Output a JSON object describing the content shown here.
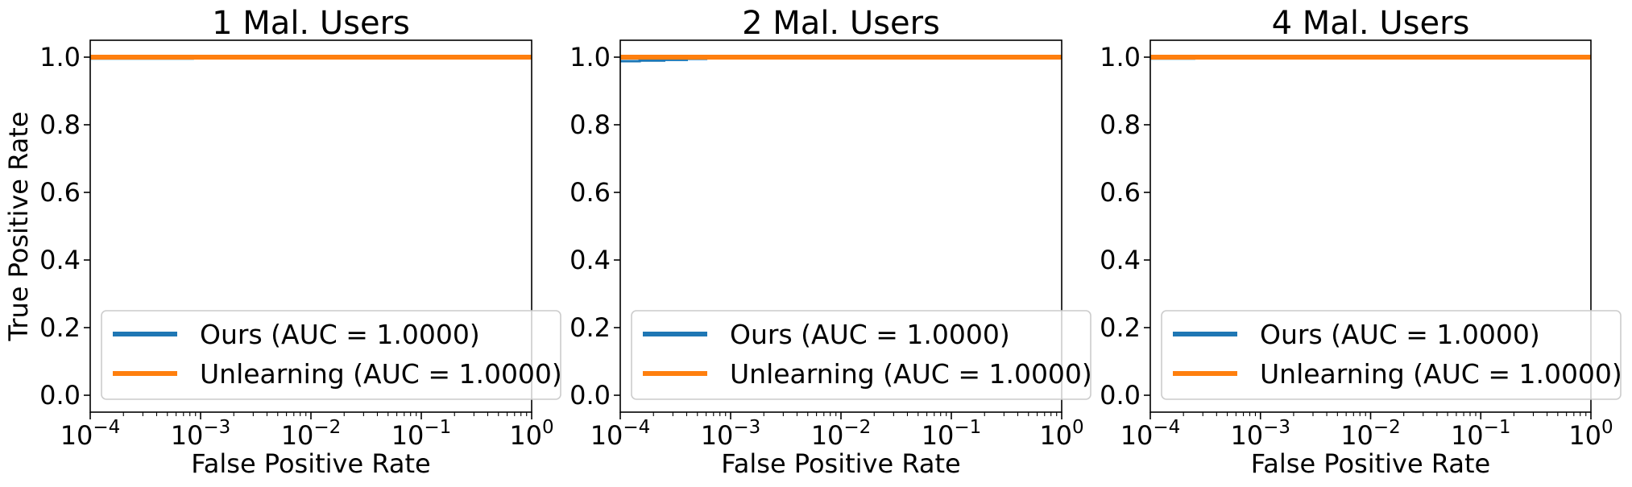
{
  "chart_data": [
    {
      "type": "line",
      "title": "1 Mal. Users",
      "xlabel": "False Positive Rate",
      "ylabel": "True Positive Rate",
      "xscale": "log",
      "xlim": [
        0.0001,
        1
      ],
      "ylim": [
        -0.05,
        1.05
      ],
      "x_ticks": [
        0.0001,
        0.001,
        0.01,
        0.1,
        1
      ],
      "x_tick_labels": [
        [
          "10",
          "−4"
        ],
        [
          "10",
          "−3"
        ],
        [
          "10",
          "−2"
        ],
        [
          "10",
          "−1"
        ],
        [
          "10",
          "0"
        ]
      ],
      "y_ticks": [
        0.0,
        0.2,
        0.4,
        0.6,
        0.8,
        1.0
      ],
      "y_tick_labels": [
        "0.0",
        "0.2",
        "0.4",
        "0.6",
        "0.8",
        "1.0"
      ],
      "legend_position": "lower-right",
      "series": [
        {
          "name": "Ours (AUC = 1.0000)",
          "color": "#1f77b4",
          "x": [
            0.0001,
            0.00085,
            0.00085,
            1
          ],
          "y": [
            0.996,
            0.996,
            1.0,
            1.0
          ]
        },
        {
          "name": "Unlearning (AUC = 1.0000)",
          "color": "#ff7f0e",
          "x": [
            0.0001,
            1
          ],
          "y": [
            1.0,
            1.0
          ]
        }
      ]
    },
    {
      "type": "line",
      "title": "2 Mal. Users",
      "xlabel": "False Positive Rate",
      "ylabel": "",
      "xscale": "log",
      "xlim": [
        0.0001,
        1
      ],
      "ylim": [
        -0.05,
        1.05
      ],
      "x_ticks": [
        0.0001,
        0.001,
        0.01,
        0.1,
        1
      ],
      "x_tick_labels": [
        [
          "10",
          "−4"
        ],
        [
          "10",
          "−3"
        ],
        [
          "10",
          "−2"
        ],
        [
          "10",
          "−1"
        ],
        [
          "10",
          "0"
        ]
      ],
      "y_ticks": [
        0.0,
        0.2,
        0.4,
        0.6,
        0.8,
        1.0
      ],
      "y_tick_labels": [
        "0.0",
        "0.2",
        "0.4",
        "0.6",
        "0.8",
        "1.0"
      ],
      "legend_position": "lower-right",
      "series": [
        {
          "name": "Ours (AUC = 1.0000)",
          "color": "#1f77b4",
          "x": [
            0.0001,
            0.00015,
            0.00015,
            0.00025,
            0.00025,
            0.0004,
            0.0004,
            0.0006,
            0.0006,
            1
          ],
          "y": [
            0.988,
            0.988,
            0.99,
            0.99,
            0.992,
            0.992,
            0.995,
            0.995,
            1.0,
            1.0
          ]
        },
        {
          "name": "Unlearning (AUC = 1.0000)",
          "color": "#ff7f0e",
          "x": [
            0.0001,
            1
          ],
          "y": [
            1.0,
            1.0
          ]
        }
      ]
    },
    {
      "type": "line",
      "title": "4 Mal. Users",
      "xlabel": "False Positive Rate",
      "ylabel": "",
      "xscale": "log",
      "xlim": [
        0.0001,
        1
      ],
      "ylim": [
        -0.05,
        1.05
      ],
      "x_ticks": [
        0.0001,
        0.001,
        0.01,
        0.1,
        1
      ],
      "x_tick_labels": [
        [
          "10",
          "−4"
        ],
        [
          "10",
          "−3"
        ],
        [
          "10",
          "−2"
        ],
        [
          "10",
          "−1"
        ],
        [
          "10",
          "0"
        ]
      ],
      "y_ticks": [
        0.0,
        0.2,
        0.4,
        0.6,
        0.8,
        1.0
      ],
      "y_tick_labels": [
        "0.0",
        "0.2",
        "0.4",
        "0.6",
        "0.8",
        "1.0"
      ],
      "legend_position": "lower-right",
      "series": [
        {
          "name": "Ours (AUC = 1.0000)",
          "color": "#1f77b4",
          "x": [
            0.0001,
            0.00025,
            0.00025,
            1
          ],
          "y": [
            0.996,
            0.996,
            1.0,
            1.0
          ]
        },
        {
          "name": "Unlearning (AUC = 1.0000)",
          "color": "#ff7f0e",
          "x": [
            0.0001,
            1
          ],
          "y": [
            1.0,
            1.0
          ]
        }
      ]
    }
  ]
}
